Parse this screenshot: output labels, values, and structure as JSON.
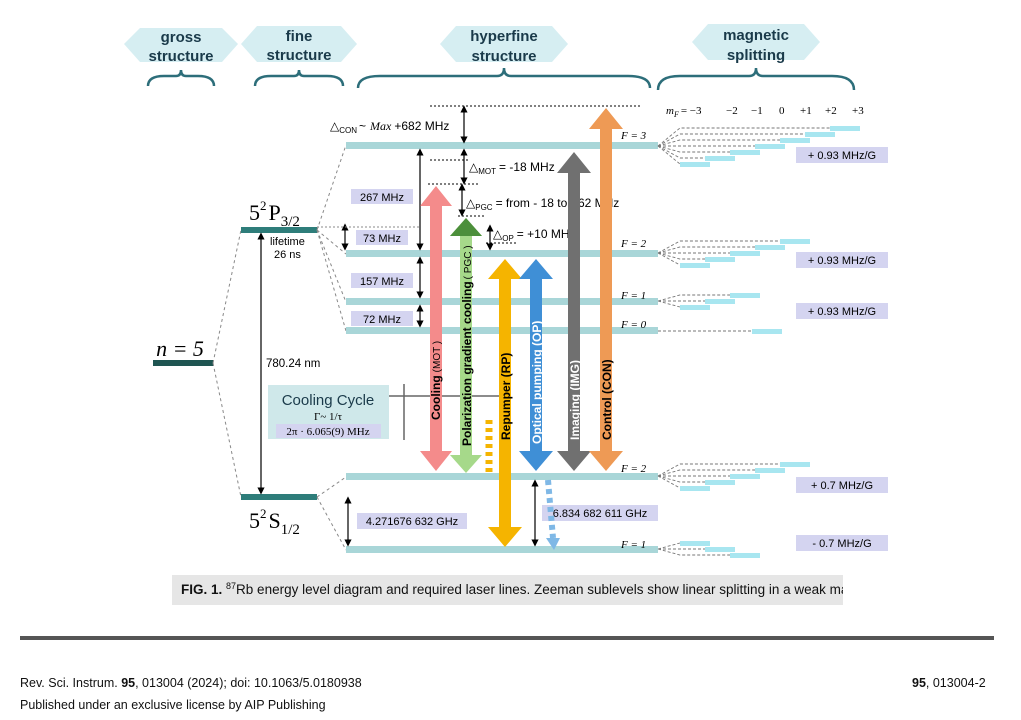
{
  "headers": {
    "gross": [
      "gross",
      "structure"
    ],
    "fine": [
      "fine",
      "structure"
    ],
    "hyperfine": [
      "hyperfine",
      "structure"
    ],
    "magnetic": [
      "magnetic",
      "splitting"
    ]
  },
  "n_label": "n = 5",
  "p_label": {
    "main": "5",
    "sup": "2",
    "letter": "P",
    "sub": "3/2"
  },
  "s_label": {
    "main": "5",
    "sup": "2",
    "letter": "S",
    "sub": "1/2"
  },
  "lifetime": [
    "lifetime",
    "26 ns"
  ],
  "wavelength": "780.24 nm",
  "cooling_cycle": {
    "title": "Cooling Cycle",
    "gamma": "Γ~ 1/τ",
    "rate": "2π · 6.065(9) MHz"
  },
  "spacings": {
    "p_267": "267 MHz",
    "p_157": "157 MHz",
    "p_72": "72 MHz",
    "p_73": "73 MHz",
    "s_ground": "4.271676 632 GHz",
    "s_hf": "6.834 682 611 GHz"
  },
  "detunings": {
    "con_prefix": "△",
    "con_sub": "CON",
    "con_text": "~",
    "con_max": "Max",
    "con_value": "+682 MHz",
    "mot_sub": "MOT",
    "mot_value": "= -18 MHz",
    "pgc_sub": "PGC",
    "pgc_value": "=  from - 18 to - 62 MHz",
    "op_sub": "OP",
    "op_value": "= +10 MHz"
  },
  "f_labels": {
    "p3": "F = 3",
    "p2": "F = 2",
    "p1": "F = 1",
    "p0": "F = 0",
    "s2": "F = 2",
    "s1": "F = 1"
  },
  "mf_header": {
    "label": "m",
    "sub": "F",
    "values": [
      "= −3",
      "−2",
      "−1",
      "0",
      "+1",
      "+2",
      "+3"
    ]
  },
  "zeeman_labels": {
    "p3": "+ 0.93 MHz/G",
    "p2": "+ 0.93 MHz/G",
    "p1": "+ 0.93 MHz/G",
    "s2": "+ 0.7 MHz/G",
    "s1": "- 0.7 MHz/G"
  },
  "lasers": {
    "cooling": {
      "label": "Cooling",
      "sub": "(MOT )",
      "color": "#f48b8b"
    },
    "pgc": {
      "label": "Polarization gradient cooling",
      "sub": "( PGC )",
      "color": "#a6d98a"
    },
    "repumper": {
      "label": "Repumper (RP)",
      "color": "#f5b400"
    },
    "optical": {
      "label": "Optical pumping (OP)",
      "color": "#3f8fd6"
    },
    "imaging": {
      "label": "Imaging (IMG)",
      "color": "#707070"
    },
    "control": {
      "label": "Control (CON)",
      "color": "#ee9a55"
    }
  },
  "colors": {
    "level": "#a9d6d8",
    "fine_level": "#2e7d7a",
    "n_level": "#1f5552",
    "label_box": "#d4d4f0",
    "header_hex": "#d6eef2"
  },
  "caption": {
    "fig": "FIG. 1.",
    "isotope_sup": "87",
    "text": "Rb energy level diagram and required laser lines. Zeeman sublevels show linear splitting in a weak magnetic field."
  },
  "footer": {
    "journal": "Rev. Sci. Instrum.",
    "volume": "95",
    "rest": ", 013004 (2024); doi: 10.1063/5.0180938",
    "publisher": "Published under an exclusive license by AIP Publishing",
    "page_vol": "95",
    "page_rest": ", 013004-2"
  }
}
